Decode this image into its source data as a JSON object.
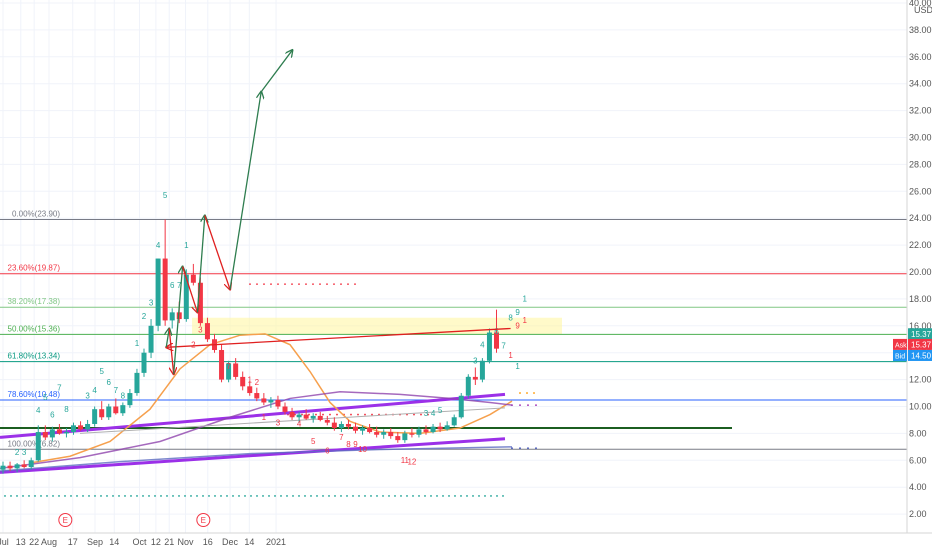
{
  "chart_data": {
    "type": "candlestick",
    "currency_label": "USD",
    "y_ticks": [
      "40.00",
      "38.00",
      "36.00",
      "34.00",
      "32.00",
      "30.00",
      "28.00",
      "26.00",
      "24.00",
      "22.00",
      "20.00",
      "18.00",
      "16.00",
      "14.00",
      "12.00",
      "10.00",
      "8.00",
      "6.00",
      "4.00",
      "2.00"
    ],
    "x_ticks": [
      "Jul",
      "13",
      "22",
      "Aug",
      "17",
      "Sep",
      "14",
      "Oct",
      "12",
      "21",
      "Nov",
      "16",
      "Dec",
      "14",
      "2021"
    ],
    "fib_levels": [
      {
        "label": "0.00%(23.90)",
        "price": 23.9,
        "color": "#787b86"
      },
      {
        "label": "23.60%(19.87)",
        "price": 19.87,
        "color": "#f23645"
      },
      {
        "label": "38.20%(17.38)",
        "price": 17.38,
        "color": "#81c784"
      },
      {
        "label": "50.00%(15.36)",
        "price": 15.36,
        "color": "#4caf50"
      },
      {
        "label": "61.80%(13.34)",
        "price": 13.34,
        "color": "#089981"
      },
      {
        "label": "78.60%(10.48)",
        "price": 10.48,
        "color": "#2962ff"
      },
      {
        "label": "100.00%(6.82)",
        "price": 6.82,
        "color": "#787b86"
      }
    ],
    "price_labels": [
      {
        "text": "15.37",
        "price": 15.37,
        "color": "#26a69a"
      },
      {
        "text": "Ask",
        "price": 14.95,
        "color": "#f23645"
      },
      {
        "text": "15.37",
        "price": 14.95,
        "color": "#f23645"
      },
      {
        "text": "Bid",
        "price": 14.5,
        "color": "#2196f3"
      },
      {
        "text": "14.50",
        "price": 14.5,
        "color": "#2196f3"
      }
    ],
    "support_level": 8.4,
    "candles": [
      {
        "o": 5.3,
        "h": 5.9,
        "l": 5.0,
        "c": 5.6
      },
      {
        "o": 5.6,
        "h": 5.9,
        "l": 5.2,
        "c": 5.4
      },
      {
        "o": 5.4,
        "h": 5.8,
        "l": 5.1,
        "c": 5.7
      },
      {
        "o": 5.7,
        "h": 6.0,
        "l": 5.4,
        "c": 5.5
      },
      {
        "o": 5.5,
        "h": 6.2,
        "l": 5.3,
        "c": 6.0
      },
      {
        "o": 6.0,
        "h": 8.6,
        "l": 5.9,
        "c": 8.1
      },
      {
        "o": 8.1,
        "h": 8.6,
        "l": 7.5,
        "c": 7.7
      },
      {
        "o": 7.7,
        "h": 8.5,
        "l": 7.4,
        "c": 8.3
      },
      {
        "o": 8.3,
        "h": 8.7,
        "l": 7.9,
        "c": 8.0
      },
      {
        "o": 8.0,
        "h": 8.4,
        "l": 7.7,
        "c": 8.1
      },
      {
        "o": 8.1,
        "h": 8.8,
        "l": 7.9,
        "c": 8.6
      },
      {
        "o": 8.6,
        "h": 8.9,
        "l": 8.2,
        "c": 8.3
      },
      {
        "o": 8.3,
        "h": 9.0,
        "l": 8.1,
        "c": 8.7
      },
      {
        "o": 8.7,
        "h": 10.0,
        "l": 8.5,
        "c": 9.8
      },
      {
        "o": 9.8,
        "h": 10.4,
        "l": 9.0,
        "c": 9.2
      },
      {
        "o": 9.2,
        "h": 10.2,
        "l": 9.0,
        "c": 10.0
      },
      {
        "o": 10.0,
        "h": 10.6,
        "l": 9.4,
        "c": 9.5
      },
      {
        "o": 9.5,
        "h": 10.3,
        "l": 9.3,
        "c": 10.1
      },
      {
        "o": 10.1,
        "h": 11.3,
        "l": 9.9,
        "c": 11.0
      },
      {
        "o": 11.0,
        "h": 12.8,
        "l": 10.8,
        "c": 12.5
      },
      {
        "o": 12.5,
        "h": 14.3,
        "l": 12.2,
        "c": 14.0
      },
      {
        "o": 14.0,
        "h": 16.5,
        "l": 13.6,
        "c": 16.0
      },
      {
        "o": 16.0,
        "h": 21.0,
        "l": 15.6,
        "c": 21.0
      },
      {
        "o": 21.0,
        "h": 23.9,
        "l": 16.0,
        "c": 16.4
      },
      {
        "o": 16.4,
        "h": 17.3,
        "l": 15.8,
        "c": 17.0
      },
      {
        "o": 17.0,
        "h": 17.8,
        "l": 16.2,
        "c": 16.5
      },
      {
        "o": 16.5,
        "h": 20.2,
        "l": 16.3,
        "c": 19.8
      },
      {
        "o": 19.8,
        "h": 20.6,
        "l": 19.0,
        "c": 19.2
      },
      {
        "o": 19.2,
        "h": 19.6,
        "l": 16.0,
        "c": 16.2
      },
      {
        "o": 16.2,
        "h": 16.6,
        "l": 14.8,
        "c": 15.0
      },
      {
        "o": 15.0,
        "h": 15.4,
        "l": 14.0,
        "c": 14.2
      },
      {
        "o": 14.2,
        "h": 14.6,
        "l": 11.8,
        "c": 12.0
      },
      {
        "o": 12.0,
        "h": 13.4,
        "l": 11.8,
        "c": 13.2
      },
      {
        "o": 13.2,
        "h": 13.6,
        "l": 12.0,
        "c": 12.2
      },
      {
        "o": 12.2,
        "h": 12.6,
        "l": 11.2,
        "c": 11.5
      },
      {
        "o": 11.5,
        "h": 11.9,
        "l": 10.8,
        "c": 11.0
      },
      {
        "o": 11.0,
        "h": 11.4,
        "l": 10.4,
        "c": 10.6
      },
      {
        "o": 10.6,
        "h": 11.0,
        "l": 10.1,
        "c": 10.3
      },
      {
        "o": 10.3,
        "h": 10.7,
        "l": 9.9,
        "c": 10.5
      },
      {
        "o": 10.5,
        "h": 10.8,
        "l": 9.8,
        "c": 10.0
      },
      {
        "o": 10.0,
        "h": 10.3,
        "l": 9.4,
        "c": 9.6
      },
      {
        "o": 9.6,
        "h": 9.9,
        "l": 9.0,
        "c": 9.2
      },
      {
        "o": 9.2,
        "h": 9.6,
        "l": 8.8,
        "c": 9.4
      },
      {
        "o": 9.4,
        "h": 9.8,
        "l": 9.0,
        "c": 9.1
      },
      {
        "o": 9.1,
        "h": 9.5,
        "l": 8.8,
        "c": 9.3
      },
      {
        "o": 9.3,
        "h": 9.6,
        "l": 8.9,
        "c": 9.0
      },
      {
        "o": 9.0,
        "h": 9.3,
        "l": 8.6,
        "c": 8.8
      },
      {
        "o": 8.8,
        "h": 9.2,
        "l": 8.2,
        "c": 8.4
      },
      {
        "o": 8.4,
        "h": 8.9,
        "l": 8.1,
        "c": 8.7
      },
      {
        "o": 8.7,
        "h": 9.0,
        "l": 8.3,
        "c": 8.5
      },
      {
        "o": 8.5,
        "h": 8.8,
        "l": 8.0,
        "c": 8.2
      },
      {
        "o": 8.2,
        "h": 8.6,
        "l": 7.9,
        "c": 8.4
      },
      {
        "o": 8.4,
        "h": 8.7,
        "l": 8.0,
        "c": 8.1
      },
      {
        "o": 8.1,
        "h": 8.5,
        "l": 7.7,
        "c": 7.9
      },
      {
        "o": 7.9,
        "h": 8.3,
        "l": 7.6,
        "c": 8.1
      },
      {
        "o": 8.1,
        "h": 8.4,
        "l": 7.6,
        "c": 7.8
      },
      {
        "o": 7.8,
        "h": 8.1,
        "l": 7.3,
        "c": 7.5
      },
      {
        "o": 7.5,
        "h": 8.2,
        "l": 7.3,
        "c": 8.0
      },
      {
        "o": 8.0,
        "h": 8.4,
        "l": 7.7,
        "c": 7.9
      },
      {
        "o": 7.9,
        "h": 8.5,
        "l": 7.7,
        "c": 8.3
      },
      {
        "o": 8.3,
        "h": 8.6,
        "l": 7.9,
        "c": 8.1
      },
      {
        "o": 8.1,
        "h": 8.7,
        "l": 8.0,
        "c": 8.5
      },
      {
        "o": 8.5,
        "h": 8.8,
        "l": 8.1,
        "c": 8.3
      },
      {
        "o": 8.3,
        "h": 8.9,
        "l": 8.2,
        "c": 8.6
      },
      {
        "o": 8.6,
        "h": 9.4,
        "l": 8.5,
        "c": 9.2
      },
      {
        "o": 9.2,
        "h": 11.0,
        "l": 9.1,
        "c": 10.8
      },
      {
        "o": 10.8,
        "h": 12.4,
        "l": 10.6,
        "c": 12.2
      },
      {
        "o": 12.2,
        "h": 12.9,
        "l": 11.6,
        "c": 12.0
      },
      {
        "o": 12.0,
        "h": 13.6,
        "l": 11.8,
        "c": 13.4
      },
      {
        "o": 13.4,
        "h": 15.8,
        "l": 13.2,
        "c": 15.5
      },
      {
        "o": 15.5,
        "h": 17.2,
        "l": 14.0,
        "c": 14.3
      }
    ],
    "projection": [
      {
        "date": "2020-10-19",
        "price": 14.4,
        "color": "#e02020"
      },
      {
        "date": "2020-10-21",
        "price": 15.8,
        "color": "#2e7d4f"
      },
      {
        "date": "2020-10-24",
        "price": 12.4,
        "color": "#e02020"
      },
      {
        "date": "2020-10-30",
        "price": 20.4,
        "color": "#2e7d4f"
      },
      {
        "date": "2020-11-09",
        "price": 17.0,
        "color": "#e02020"
      },
      {
        "date": "2020-11-14",
        "price": 24.2,
        "color": "#2e7d4f"
      },
      {
        "date": "2020-12-01",
        "price": 18.7,
        "color": "#e02020"
      },
      {
        "date": "2020-12-22",
        "price": 33.4,
        "color": "#2e7d4f"
      },
      {
        "date": "2021-01-12",
        "price": 36.5,
        "color": "#2e7d4f"
      }
    ],
    "td_counts_green": [
      {
        "text": "2",
        "i": 2,
        "p": 6.4
      },
      {
        "text": "3",
        "i": 3,
        "p": 6.4
      },
      {
        "text": "4",
        "i": 5,
        "p": 9.5
      },
      {
        "text": "5",
        "i": 6,
        "p": 10.5
      },
      {
        "text": "6",
        "i": 7,
        "p": 9.2
      },
      {
        "text": "7",
        "i": 8,
        "p": 11.2
      },
      {
        "text": "8",
        "i": 9,
        "p": 9.6
      },
      {
        "text": "3",
        "i": 12,
        "p": 10.6
      },
      {
        "text": "4",
        "i": 13,
        "p": 11.0
      },
      {
        "text": "5",
        "i": 14,
        "p": 12.4
      },
      {
        "text": "6",
        "i": 15,
        "p": 11.6
      },
      {
        "text": "7",
        "i": 16,
        "p": 11.0
      },
      {
        "text": "8",
        "i": 17,
        "p": 10.6
      },
      {
        "text": "1",
        "i": 19,
        "p": 14.5
      },
      {
        "text": "2",
        "i": 20,
        "p": 16.5
      },
      {
        "text": "3",
        "i": 21,
        "p": 17.5
      },
      {
        "text": "4",
        "i": 22,
        "p": 21.8
      },
      {
        "text": "5",
        "i": 23,
        "p": 25.5
      },
      {
        "text": "6",
        "i": 24,
        "p": 18.8
      },
      {
        "text": "7",
        "i": 25,
        "p": 18.8
      },
      {
        "text": "1",
        "i": 26,
        "p": 21.8
      },
      {
        "text": "3",
        "i": 60,
        "p": 9.3
      },
      {
        "text": "4",
        "i": 61,
        "p": 9.3
      },
      {
        "text": "5",
        "i": 62,
        "p": 9.5
      },
      {
        "text": "2",
        "i": 66,
        "p": 11.8
      },
      {
        "text": "3",
        "i": 67,
        "p": 13.2
      },
      {
        "text": "4",
        "i": 68,
        "p": 14.4
      },
      {
        "text": "5",
        "i": 69,
        "p": 14.6
      },
      {
        "text": "6",
        "i": 70,
        "p": 15.4
      },
      {
        "text": "7",
        "i": 71,
        "p": 14.3
      },
      {
        "text": "8",
        "i": 72,
        "p": 16.4
      },
      {
        "text": "9",
        "i": 73,
        "p": 16.8
      },
      {
        "text": "1",
        "i": 74,
        "p": 17.8
      },
      {
        "text": "1",
        "i": 73,
        "p": 12.8
      }
    ],
    "td_counts_red": [
      {
        "text": "3",
        "i": 28,
        "p": 15.5
      },
      {
        "text": "4",
        "i": 29,
        "p": 15.0
      },
      {
        "text": "5",
        "i": 30,
        "p": 14.4
      },
      {
        "text": "6",
        "i": 31,
        "p": 13.6
      },
      {
        "text": "7",
        "i": 32,
        "p": 12.8
      },
      {
        "text": "8",
        "i": 33,
        "p": 12.2
      },
      {
        "text": "9",
        "i": 34,
        "p": 11.6
      },
      {
        "text": "1",
        "i": 35,
        "p": 11.8
      },
      {
        "text": "2",
        "i": 36,
        "p": 11.6
      },
      {
        "text": "2",
        "i": 27,
        "p": 14.4
      },
      {
        "text": "1",
        "i": 37,
        "p": 9.0
      },
      {
        "text": "3",
        "i": 39,
        "p": 8.6
      },
      {
        "text": "4",
        "i": 42,
        "p": 8.5
      },
      {
        "text": "5",
        "i": 44,
        "p": 7.2
      },
      {
        "text": "6",
        "i": 46,
        "p": 6.5
      },
      {
        "text": "7",
        "i": 48,
        "p": 7.5
      },
      {
        "text": "8",
        "i": 49,
        "p": 7.0
      },
      {
        "text": "9",
        "i": 50,
        "p": 7.0
      },
      {
        "text": "10",
        "i": 51,
        "p": 6.6
      },
      {
        "text": "11",
        "i": 57,
        "p": 5.8
      },
      {
        "text": "12",
        "i": 58,
        "p": 5.7
      },
      {
        "text": "9",
        "i": 73,
        "p": 15.8
      },
      {
        "text": "1",
        "i": 72,
        "p": 13.6
      },
      {
        "text": "1",
        "i": 74,
        "p": 16.2
      }
    ],
    "earnings_markers": [
      {
        "text": "E",
        "date": "2020-08-12"
      },
      {
        "text": "E",
        "date": "2020-11-13"
      }
    ]
  }
}
